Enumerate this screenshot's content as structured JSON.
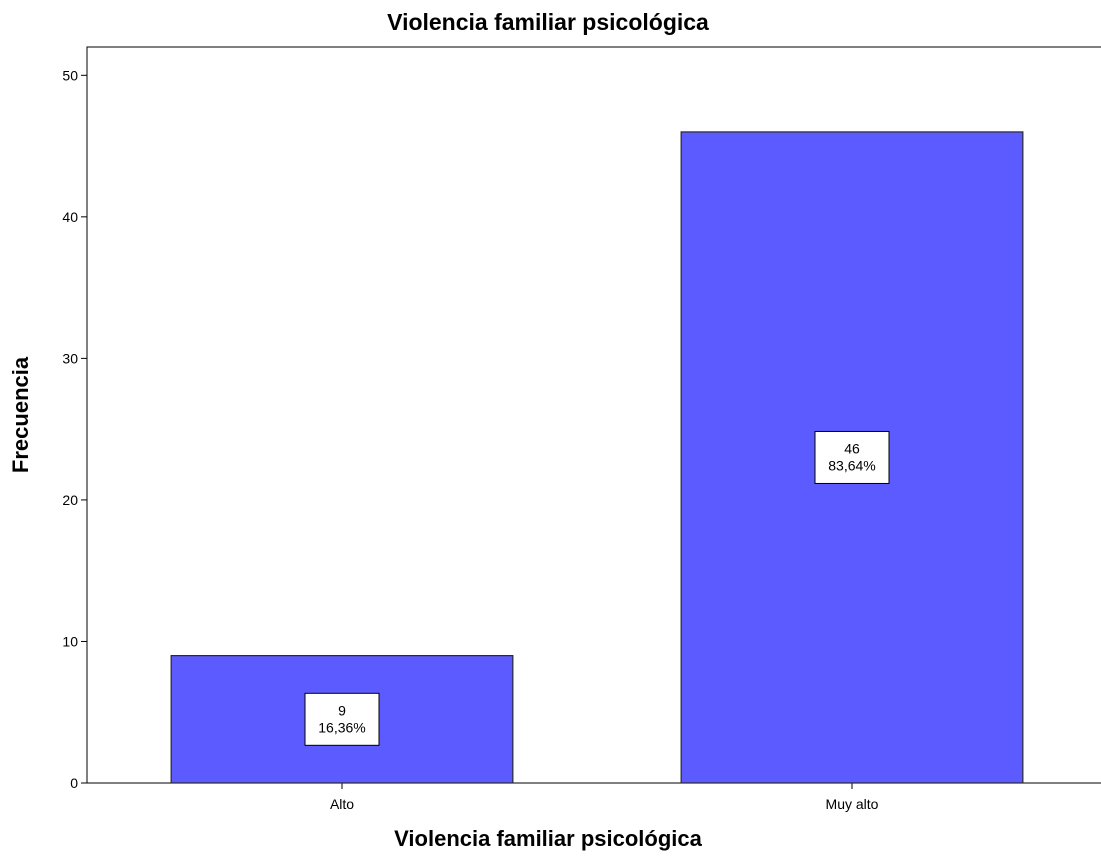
{
  "chart_data": {
    "type": "bar",
    "title": "Violencia familiar psicológica",
    "xlabel": "Violencia familiar psicológica",
    "ylabel": "Frecuencia",
    "categories": [
      "Alto",
      "Muy alto"
    ],
    "values": [
      9,
      46
    ],
    "percent_labels": [
      "16,36%",
      "83,64%"
    ],
    "count_labels": [
      "9",
      "46"
    ],
    "ylim": [
      0,
      52
    ],
    "yticks": [
      0,
      10,
      20,
      30,
      40,
      50
    ],
    "ytick_labels": [
      "0",
      "10",
      "20",
      "30",
      "40",
      "50"
    ],
    "grid": false,
    "bar_color": "#5b5bff",
    "bar_edge_color": "#2a2a2a"
  }
}
